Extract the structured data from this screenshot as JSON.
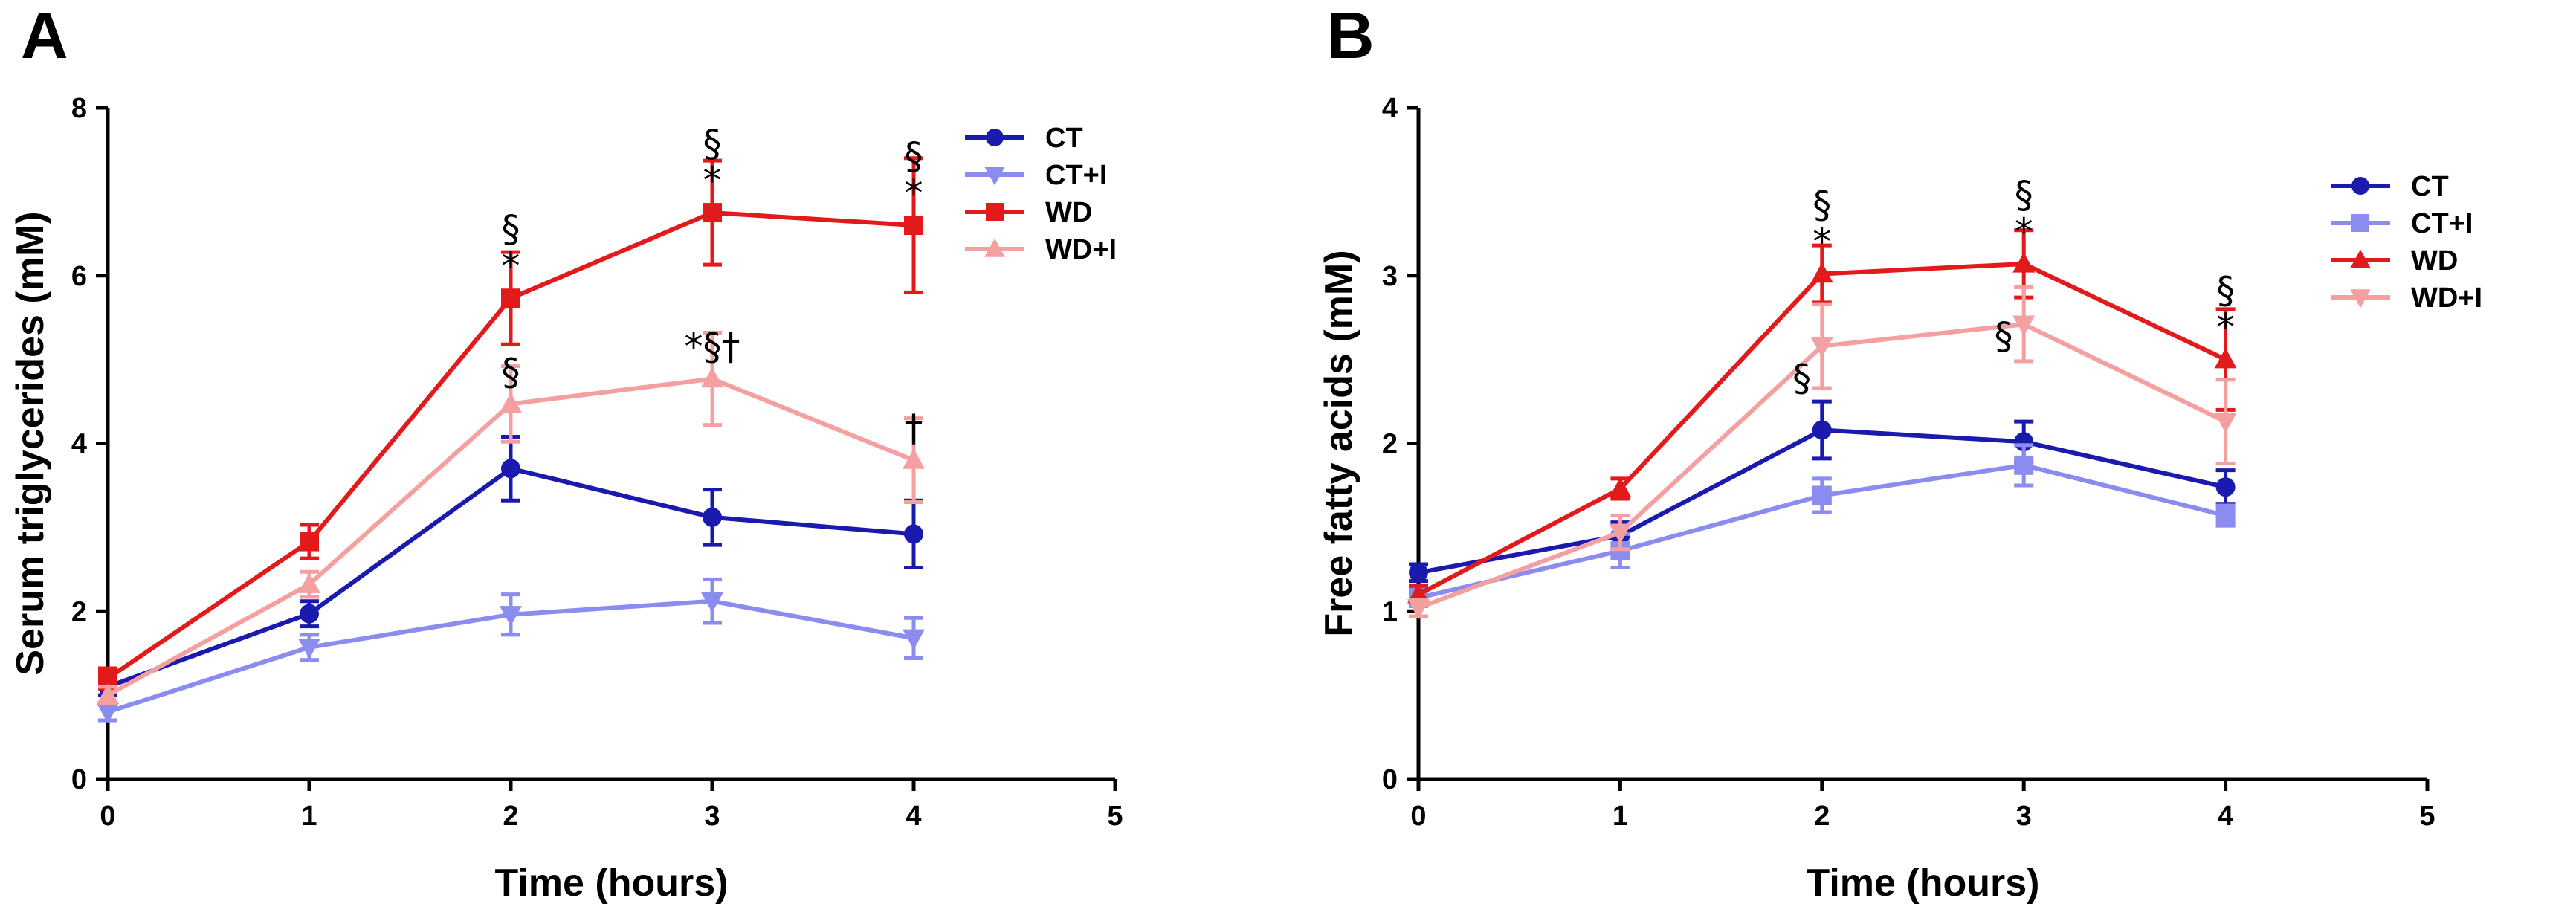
{
  "figure": {
    "panels": [
      "A",
      "B"
    ]
  },
  "chart_data": [
    {
      "panel": "A",
      "type": "line",
      "title": "",
      "xlabel": "Time (hours)",
      "ylabel": "Serum triglycerides (mM)",
      "xlim": [
        0,
        5
      ],
      "ylim": [
        0,
        8
      ],
      "xticks": [
        0,
        1,
        2,
        3,
        4,
        5
      ],
      "yticks": [
        0,
        2,
        4,
        6,
        8
      ],
      "x": [
        0,
        1,
        2,
        3,
        4
      ],
      "legend_position": "top-right",
      "series": [
        {
          "name": "CT",
          "color": "#1a1aaf",
          "marker": "circle",
          "values": [
            1.1,
            1.97,
            3.7,
            3.12,
            2.92
          ],
          "err": [
            0.1,
            0.15,
            0.38,
            0.33,
            0.4
          ]
        },
        {
          "name": "CT+I",
          "color": "#8a8cf0",
          "marker": "triangle-down",
          "values": [
            0.8,
            1.57,
            1.96,
            2.12,
            1.68
          ],
          "err": [
            0.1,
            0.15,
            0.24,
            0.26,
            0.24
          ]
        },
        {
          "name": "WD",
          "color": "#e31a1c",
          "marker": "square",
          "values": [
            1.2,
            2.83,
            5.73,
            6.75,
            6.6
          ],
          "err": [
            0.12,
            0.2,
            0.55,
            0.62,
            0.8
          ]
        },
        {
          "name": "WD+I",
          "color": "#f5a0a0",
          "marker": "triangle-up",
          "values": [
            1.0,
            2.32,
            4.47,
            4.77,
            3.8
          ],
          "err": [
            0.1,
            0.15,
            0.45,
            0.55,
            0.5
          ]
        }
      ],
      "annotations": [
        {
          "x": 2,
          "y": 5.73,
          "lines": [
            "§",
            "*"
          ]
        },
        {
          "x": 3,
          "y": 6.75,
          "lines": [
            "§",
            "*"
          ]
        },
        {
          "x": 4,
          "y": 6.6,
          "lines": [
            "§",
            "*"
          ]
        },
        {
          "x": 2,
          "y": 4.47,
          "lines": [
            "§"
          ]
        },
        {
          "x": 3,
          "y": 4.77,
          "lines": [
            "*§†"
          ]
        },
        {
          "x": 4,
          "y": 3.8,
          "lines": [
            "†"
          ]
        }
      ]
    },
    {
      "panel": "B",
      "type": "line",
      "title": "",
      "xlabel": "Time (hours)",
      "ylabel": "Free fatty acids (mM)",
      "xlim": [
        0,
        5
      ],
      "ylim": [
        0,
        4
      ],
      "xticks": [
        0,
        1,
        2,
        3,
        4,
        5
      ],
      "yticks": [
        0,
        1,
        2,
        3,
        4
      ],
      "x": [
        0,
        1,
        2,
        3,
        4
      ],
      "legend_position": "right",
      "series": [
        {
          "name": "CT",
          "color": "#1a1aaf",
          "marker": "circle",
          "values": [
            1.23,
            1.45,
            2.08,
            2.01,
            1.74
          ],
          "err": [
            0.05,
            0.08,
            0.17,
            0.12,
            0.1
          ]
        },
        {
          "name": "CT+I",
          "color": "#8a8cf0",
          "marker": "square",
          "values": [
            1.08,
            1.36,
            1.69,
            1.87,
            1.57
          ],
          "err": [
            0.05,
            0.1,
            0.1,
            0.12,
            0.06
          ]
        },
        {
          "name": "WD",
          "color": "#e31a1c",
          "marker": "triangle-up",
          "values": [
            1.1,
            1.73,
            3.01,
            3.07,
            2.5
          ],
          "err": [
            0.05,
            0.06,
            0.17,
            0.2,
            0.3
          ]
        },
        {
          "name": "WD+I",
          "color": "#f5a0a0",
          "marker": "triangle-down",
          "values": [
            1.02,
            1.47,
            2.58,
            2.71,
            2.13
          ],
          "err": [
            0.05,
            0.1,
            0.25,
            0.22,
            0.25
          ]
        }
      ],
      "annotations": [
        {
          "x": 2,
          "y": 3.01,
          "lines": [
            "§",
            "*"
          ]
        },
        {
          "x": 3,
          "y": 3.07,
          "lines": [
            "§",
            "*"
          ]
        },
        {
          "x": 4,
          "y": 2.5,
          "lines": [
            "§",
            "*"
          ]
        },
        {
          "x": 1.9,
          "y": 2.2,
          "lines": [
            "§"
          ]
        },
        {
          "x": 2.9,
          "y": 2.45,
          "lines": [
            "§"
          ]
        }
      ]
    }
  ]
}
